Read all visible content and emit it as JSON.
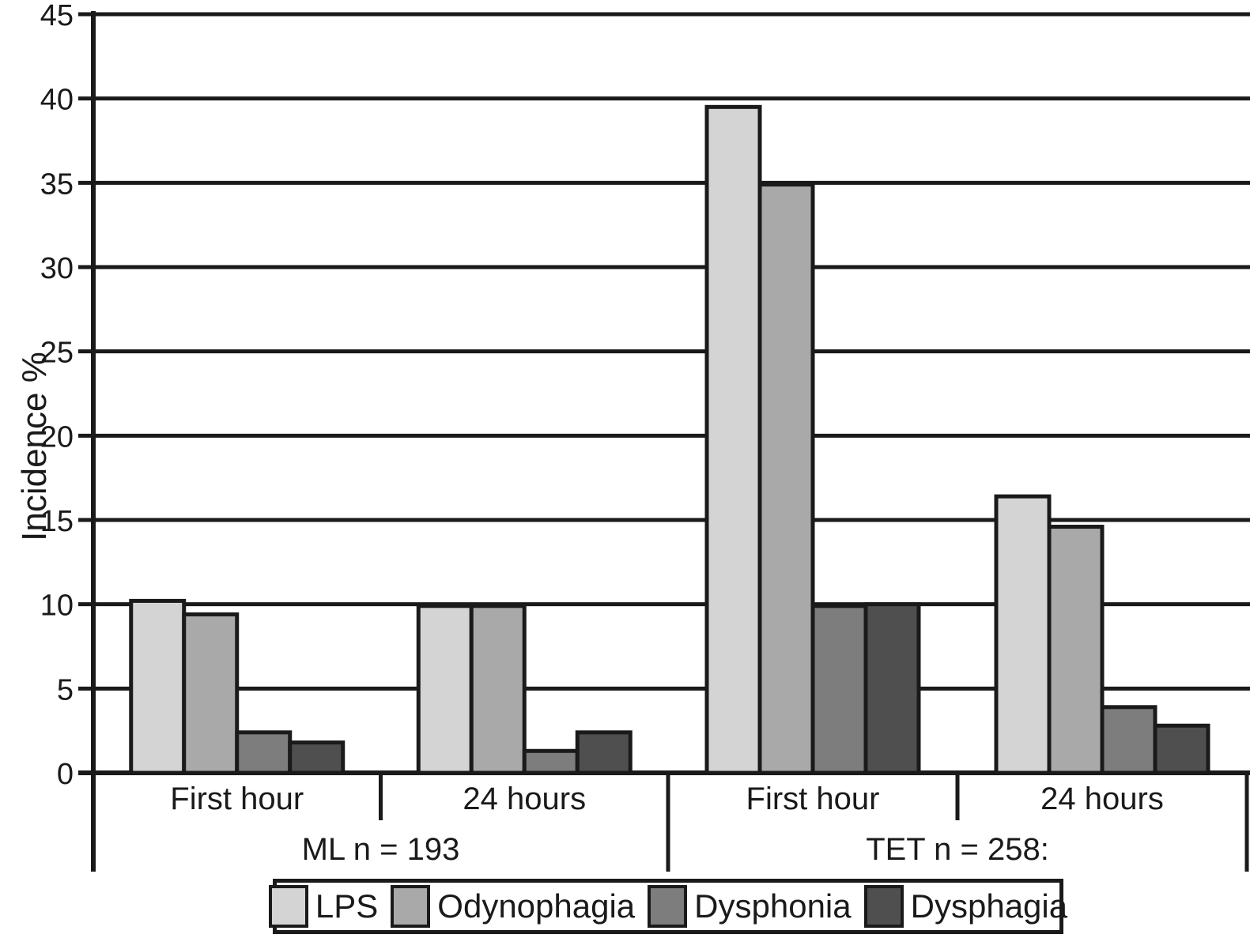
{
  "chart_data": {
    "type": "bar",
    "title": "",
    "ylabel": "Incidence %",
    "xlabel": "",
    "ylim": [
      0,
      45
    ],
    "ytick_step": 5,
    "yticks": [
      45,
      40,
      35,
      30,
      25,
      20,
      15,
      10,
      5,
      0
    ],
    "grid": "horizontal",
    "legend_position": "bottom",
    "categories": [
      "First hour",
      "24 hours",
      "First hour",
      "24 hours"
    ],
    "sections": [
      {
        "label": "ML n = 193",
        "span": [
          0,
          2
        ]
      },
      {
        "label": "TET n = 258:",
        "span": [
          2,
          4
        ]
      }
    ],
    "series": [
      {
        "name": "LPS",
        "color": "#d4d4d4",
        "values": [
          10.2,
          9.9,
          39.5,
          16.4
        ]
      },
      {
        "name": "Odynophagia",
        "color": "#a9a9a9",
        "values": [
          9.4,
          9.9,
          34.9,
          14.6
        ]
      },
      {
        "name": "Dysphonia",
        "color": "#7d7d7d",
        "values": [
          2.4,
          1.3,
          9.9,
          3.9
        ]
      },
      {
        "name": "Dysphagia",
        "color": "#4f4f4f",
        "values": [
          1.8,
          2.4,
          10.0,
          2.8
        ]
      }
    ],
    "line_color": "#1a1a1a",
    "background_color": "#ffffff"
  }
}
